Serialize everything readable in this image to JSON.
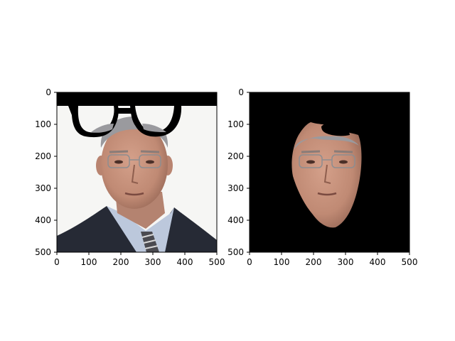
{
  "figure": {
    "background": "#ffffff"
  },
  "chart_data": [
    {
      "type": "image",
      "title": "",
      "xlabel": "",
      "ylabel": "",
      "xlim": [
        0,
        500
      ],
      "ylim": [
        500,
        0
      ],
      "x_ticks": [
        0,
        100,
        200,
        300,
        400,
        500
      ],
      "y_ticks": [
        0,
        100,
        200,
        300,
        400,
        500
      ],
      "x_tick_labels": [
        "0",
        "100",
        "200",
        "300",
        "400",
        "500"
      ],
      "y_tick_labels": [
        "0",
        "100",
        "200",
        "300",
        "400",
        "500"
      ],
      "image_content": "portrait photo of a man in a suit with a black eyeglasses mask overlay at the top",
      "colors": {
        "background": "#f6f6f4",
        "mask": "#000000",
        "suit": "#262a35",
        "shirt": "#bcc8dc",
        "skin": "#c9957f"
      }
    },
    {
      "type": "image",
      "title": "",
      "xlabel": "",
      "ylabel": "",
      "xlim": [
        0,
        500
      ],
      "ylim": [
        500,
        0
      ],
      "x_ticks": [
        0,
        100,
        200,
        300,
        400,
        500
      ],
      "y_ticks": [
        0,
        100,
        200,
        300,
        400,
        500
      ],
      "x_tick_labels": [
        "0",
        "100",
        "200",
        "300",
        "400",
        "500"
      ],
      "y_tick_labels": [
        "0",
        "100",
        "200",
        "300",
        "400",
        "500"
      ],
      "image_content": "segmented face region on black background",
      "colors": {
        "background": "#000000",
        "skin": "#c9957f"
      }
    }
  ]
}
